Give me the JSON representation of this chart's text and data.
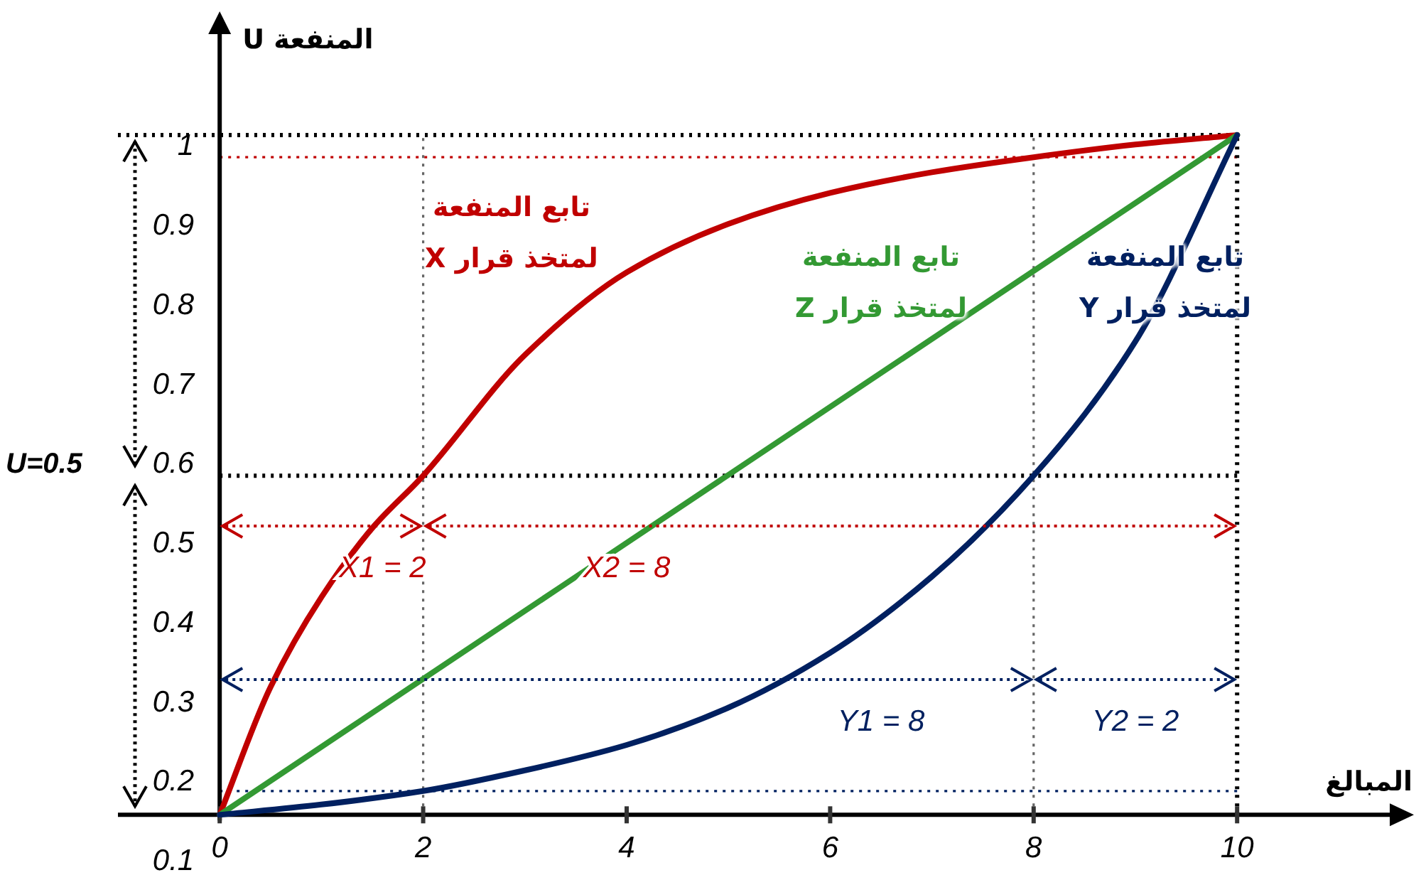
{
  "chart_data": {
    "type": "line",
    "xlabel": "المبالغ",
    "ylabel": "المنفعة U",
    "xlim": [
      -1,
      11.5
    ],
    "ylim": [
      0.1,
      1.14
    ],
    "xticks": [
      0,
      2,
      4,
      6,
      8,
      10
    ],
    "yticks": [
      0.1,
      0.2,
      0.3,
      0.4,
      0.5,
      0.6,
      0.7,
      0.8,
      0.9,
      1
    ],
    "x": [
      0,
      0.5,
      1,
      1.5,
      2,
      3,
      4,
      5,
      6,
      7,
      8,
      9,
      10
    ],
    "series": [
      {
        "name": "تابع المنفعة لمتخذ قرار X",
        "color": "#c00000",
        "values": [
          0.157,
          0.318,
          0.431,
          0.518,
          0.584,
          0.736,
          0.84,
          0.901,
          0.94,
          0.966,
          0.985,
          1.001,
          1.013
        ]
      },
      {
        "name": "تابع المنفعة لمتخذ قرار Z",
        "color": "#339933",
        "x": [
          0,
          10
        ],
        "values": [
          0.157,
          1.013
        ]
      },
      {
        "name": "تابع المنفعة لمتخذ قرار Y",
        "color": "#002060",
        "x": [
          0,
          1,
          2,
          3,
          4,
          5,
          6,
          7,
          8,
          9,
          10
        ],
        "values": [
          0.157,
          0.17,
          0.187,
          0.213,
          0.245,
          0.292,
          0.361,
          0.457,
          0.584,
          0.753,
          1.013
        ]
      }
    ],
    "ref_lines": [
      {
        "axis": "y",
        "value": 1.013,
        "color": "#000000",
        "line_style": "dotted"
      },
      {
        "axis": "y",
        "value": 0.985,
        "color": "#c00000",
        "line_style": "dotted"
      },
      {
        "axis": "y",
        "value": 0.584,
        "color": "#000000",
        "line_style": "dotted"
      },
      {
        "axis": "y",
        "value": 0.187,
        "color": "#002060",
        "line_style": "dotted"
      },
      {
        "axis": "x",
        "value": 2,
        "color": "#666666",
        "line_style": "dotted"
      },
      {
        "axis": "x",
        "value": 8,
        "color": "#666666",
        "line_style": "dotted"
      },
      {
        "axis": "x",
        "value": 10,
        "color": "#000000",
        "line_style": "dotted"
      }
    ],
    "annotations": [
      "X1 = 2",
      "X2 = 8",
      "Y1 = 8",
      "Y2 = 2",
      "U=0.5"
    ],
    "legend": false,
    "grid": false,
    "marker": "none",
    "line_style": "solid"
  }
}
